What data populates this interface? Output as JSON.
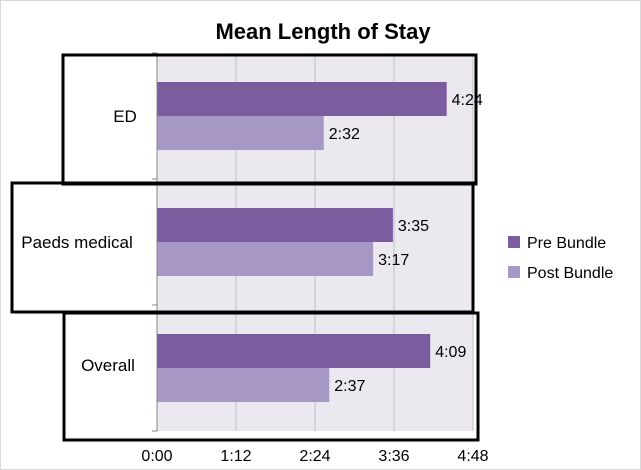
{
  "chart_data": {
    "type": "bar",
    "orientation": "horizontal",
    "title": "Mean Length of Stay",
    "categories": [
      "ED",
      "Paeds medical",
      "Overall"
    ],
    "series": [
      {
        "name": "Pre Bundle",
        "color": "#7b5c9e",
        "values": [
          4.4,
          3.5833,
          4.15
        ],
        "labels": [
          "4:24",
          "3:35",
          "4:09"
        ]
      },
      {
        "name": "Post Bundle",
        "color": "#a797c4",
        "values": [
          2.5333,
          3.2833,
          2.6167
        ],
        "labels": [
          "2:32",
          "3:17",
          "2:37"
        ]
      }
    ],
    "x_unit": "hours",
    "xlim": [
      0,
      4.8
    ],
    "x_ticks": [
      0,
      1.2,
      2.4,
      3.6,
      4.8
    ],
    "x_tick_labels": [
      "0:00",
      "1:12",
      "2:24",
      "3:36",
      "4:48"
    ],
    "xlabel": "",
    "ylabel": "",
    "grid": true,
    "legend_position": "right",
    "plot_background": "#ebe8f0"
  }
}
